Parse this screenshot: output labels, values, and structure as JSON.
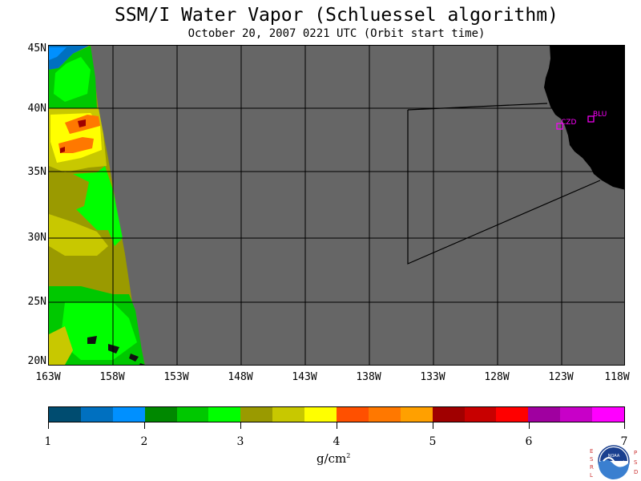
{
  "title": "SSM/I Water Vapor (Schluessel algorithm)",
  "subtitle": "October 20, 2007  0221 UTC  (Orbit start time)",
  "map": {
    "lat_labels": [
      "45N",
      "40N",
      "35N",
      "30N",
      "25N",
      "20N"
    ],
    "lon_labels": [
      "163W",
      "158W",
      "153W",
      "148W",
      "143W",
      "138W",
      "133W",
      "128W",
      "123W",
      "118W"
    ],
    "stations": [
      {
        "code": "CZD"
      },
      {
        "code": "BLU"
      }
    ],
    "background_color": "#666666",
    "land_color": "#000000"
  },
  "colorbar": {
    "colors": [
      "#004c70",
      "#0070c0",
      "#0090ff",
      "#008800",
      "#00c800",
      "#00ff00",
      "#9a9a00",
      "#c8c800",
      "#ffff00",
      "#ff5000",
      "#ff7800",
      "#ffa000",
      "#a00000",
      "#c80000",
      "#ff0000",
      "#a000a0",
      "#c800c8",
      "#ff00ff"
    ],
    "labels": [
      "1",
      "2",
      "3",
      "4",
      "5",
      "6",
      "7"
    ],
    "units": "g/cm",
    "units_superscript": "2"
  },
  "logo": {
    "left_text": "ESRL",
    "right_text": "PSD",
    "center_text": "NOAA"
  }
}
